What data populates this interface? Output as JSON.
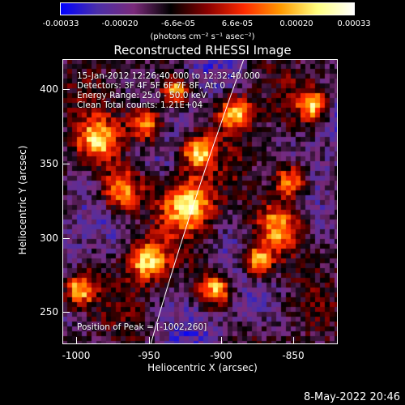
{
  "colorbar": {
    "ticks": [
      "-0.00033",
      "-0.00020",
      "-6.6e-05",
      "6.6e-05",
      "0.00020",
      "0.00033"
    ],
    "units": "(photons cm⁻² s⁻¹ asec⁻²)",
    "colormap": [
      "#0000ff",
      "#4b2fa8",
      "#7a2a7a",
      "#000000",
      "#8a0000",
      "#ff2a00",
      "#ff9a00",
      "#ffff80",
      "#ffffff"
    ]
  },
  "title": "Reconstructed RHESSI Image",
  "annotations": {
    "time": "15-Jan-2012 12:26:40.000 to 12:32:40.000",
    "detectors": "Detectors: 3F 4F 5F 6F 7F 8F, Att 0",
    "energy": "Energy Range: 25.0 - 50.0 keV",
    "clean": "Clean     Total counts: 1.21E+04",
    "peak": "Position of Peak = [-1002,260]"
  },
  "axes": {
    "xlabel": "Heliocentric X (arcsec)",
    "ylabel": "Heliocentric Y (arcsec)",
    "xticks": [
      "-1000",
      "-950",
      "-900",
      "-850"
    ],
    "yticks": [
      "400",
      "350",
      "300",
      "250"
    ]
  },
  "footer": "8-May-2022 20:46"
}
